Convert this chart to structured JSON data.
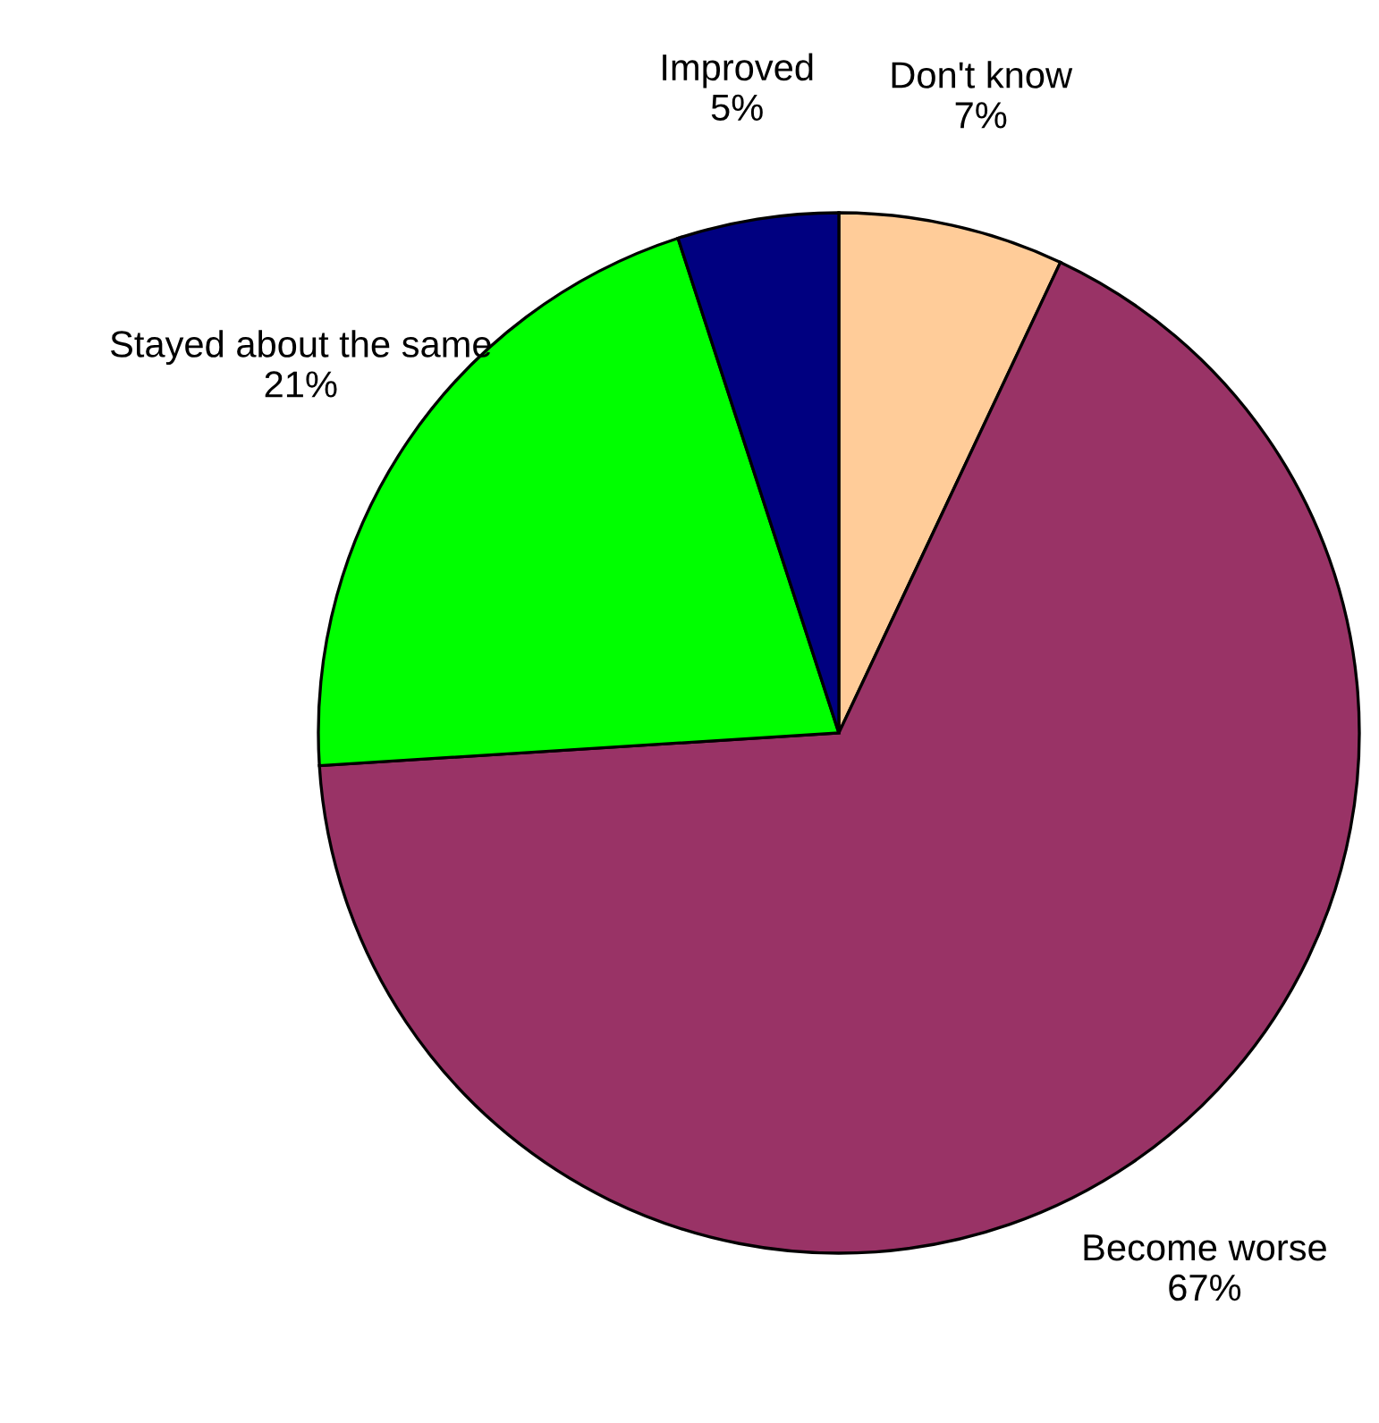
{
  "chart_data": {
    "type": "pie",
    "categories": [
      "Don't know",
      "Become worse",
      "Stayed about the same",
      "Improved"
    ],
    "values": [
      7,
      67,
      21,
      5
    ],
    "value_labels": [
      "7%",
      "67%",
      "21%",
      "5%"
    ],
    "colors": [
      "#ffcc99",
      "#993366",
      "#00ff00",
      "#000080"
    ],
    "legend": false
  }
}
